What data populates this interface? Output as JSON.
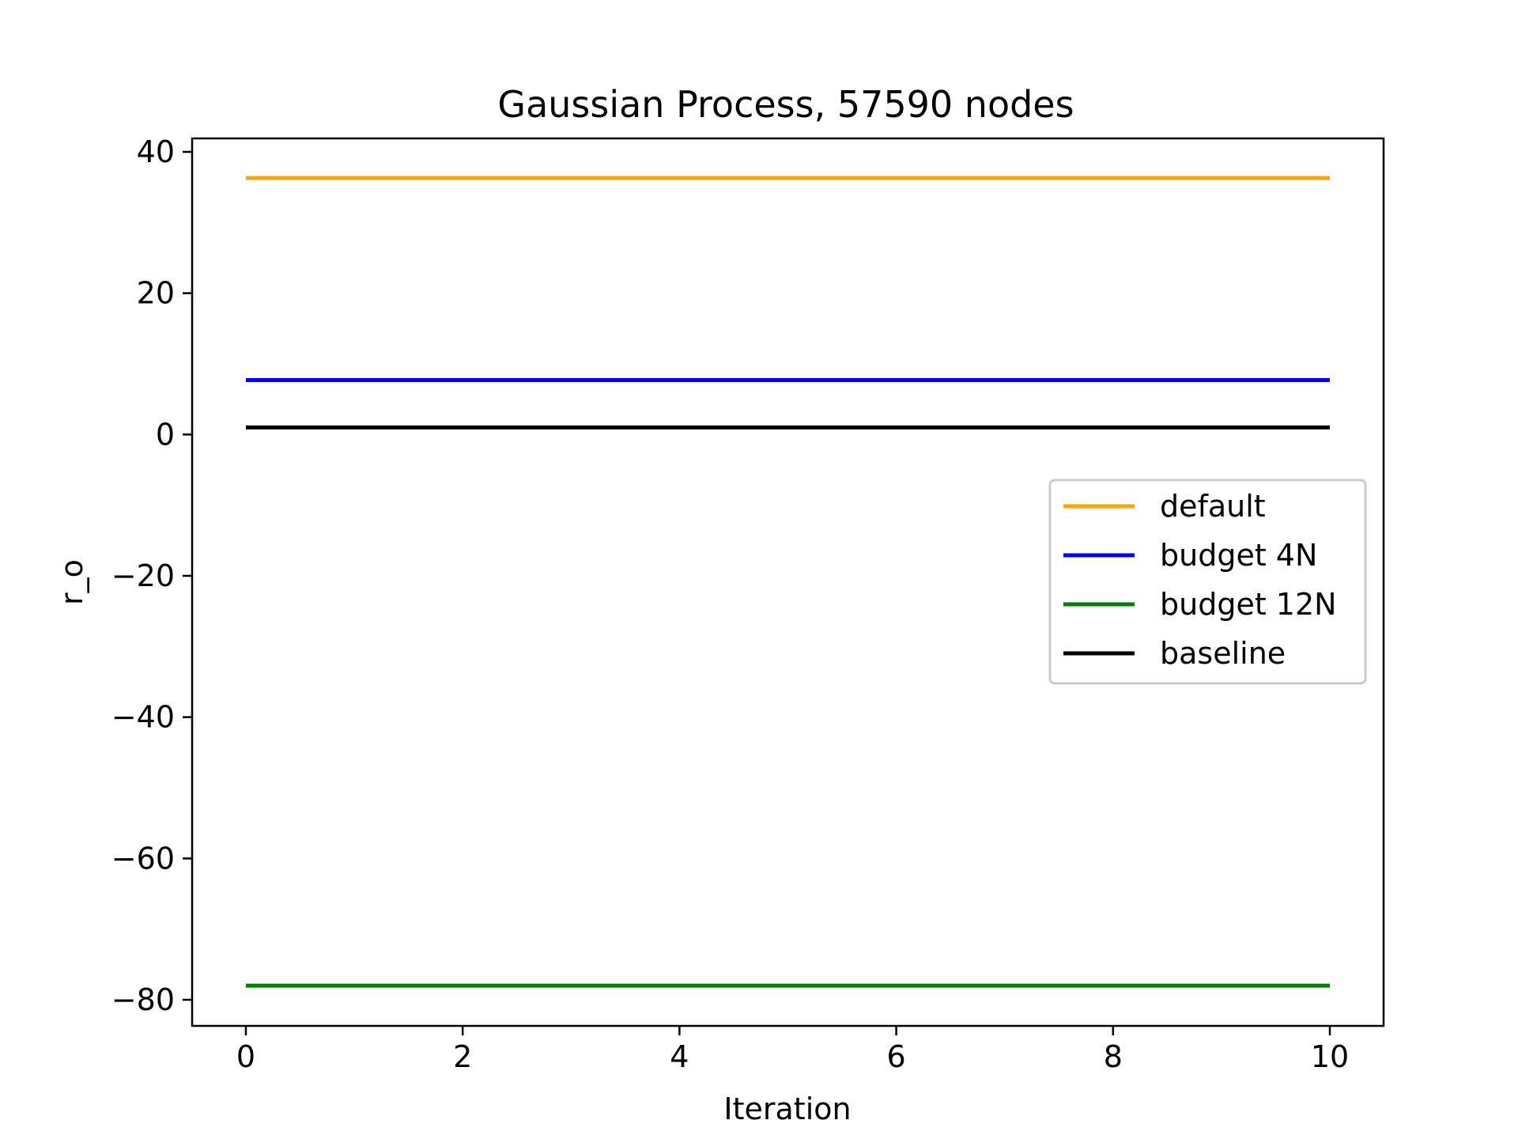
{
  "chart_data": {
    "type": "line",
    "title": "Gaussian Process, 57590 nodes",
    "xlabel": "Iteration",
    "ylabel": "r_o",
    "xlim": [
      -0.5,
      10.5
    ],
    "ylim": [
      -84,
      42
    ],
    "xticks": [
      0,
      2,
      4,
      6,
      8,
      10
    ],
    "yticks": [
      40,
      20,
      0,
      -20,
      -40,
      -60,
      -80
    ],
    "xtick_labels": [
      "0",
      "2",
      "4",
      "6",
      "8",
      "10"
    ],
    "ytick_labels": [
      "40",
      "20",
      "0",
      "−20",
      "−40",
      "−60",
      "−80"
    ],
    "grid": false,
    "legend_position": "center-right",
    "series": [
      {
        "name": "default",
        "color": "#ffa500",
        "x": [
          0,
          10
        ],
        "values": [
          36.3,
          36.3
        ]
      },
      {
        "name": "budget 4N",
        "color": "#0000ff",
        "x": [
          0,
          10
        ],
        "values": [
          7.7,
          7.7
        ]
      },
      {
        "name": "budget 12N",
        "color": "#008000",
        "x": [
          0,
          10
        ],
        "values": [
          -78.0,
          -78.0
        ]
      },
      {
        "name": "baseline",
        "color": "#000000",
        "x": [
          0,
          10
        ],
        "values": [
          1.0,
          1.0
        ]
      }
    ]
  }
}
